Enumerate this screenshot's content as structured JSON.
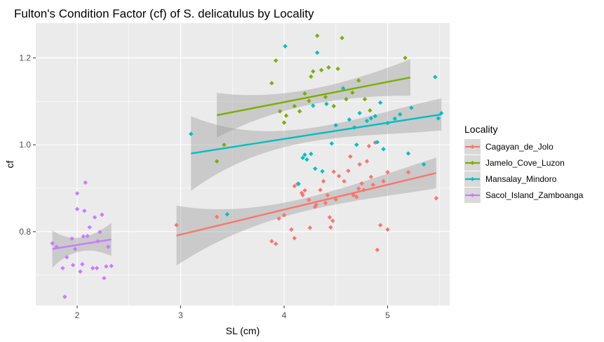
{
  "chart_data": {
    "type": "scatter",
    "title": "Fulton's Condition Factor (cf) of S. delicatulus by Locality",
    "xlabel": "SL (cm)",
    "ylabel": "cf",
    "xlim": [
      1.6,
      5.6
    ],
    "ylim": [
      0.63,
      1.28
    ],
    "x_ticks": [
      {
        "value": 2,
        "label": "2"
      },
      {
        "value": 3,
        "label": "3"
      },
      {
        "value": 4,
        "label": "4"
      },
      {
        "value": 5,
        "label": "5"
      }
    ],
    "y_ticks": [
      {
        "value": 0.8,
        "label": "0.8"
      },
      {
        "value": 1.0,
        "label": "1.0"
      },
      {
        "value": 1.2,
        "label": "1.2"
      }
    ],
    "grid": true,
    "legend": {
      "title": "Locality",
      "position": "right"
    },
    "series": [
      {
        "name": "Cagayan_de_Jolo",
        "color": "#F8766D",
        "points": [
          [
            2.96,
            0.815
          ],
          [
            3.35,
            0.834
          ],
          [
            3.88,
            0.778
          ],
          [
            3.92,
            0.772
          ],
          [
            3.95,
            0.83
          ],
          [
            4.0,
            0.838
          ],
          [
            4.07,
            0.805
          ],
          [
            4.1,
            0.785
          ],
          [
            4.1,
            0.905
          ],
          [
            4.13,
            0.91
          ],
          [
            4.17,
            0.889
          ],
          [
            4.18,
            0.884
          ],
          [
            4.2,
            0.895
          ],
          [
            4.24,
            0.873
          ],
          [
            4.25,
            0.809
          ],
          [
            4.3,
            0.857
          ],
          [
            4.31,
            0.862
          ],
          [
            4.35,
            0.896
          ],
          [
            4.38,
            0.916
          ],
          [
            4.4,
            0.866
          ],
          [
            4.42,
            0.884
          ],
          [
            4.44,
            0.833
          ],
          [
            4.45,
            0.81
          ],
          [
            4.47,
            0.825
          ],
          [
            4.48,
            0.938
          ],
          [
            4.5,
            0.874
          ],
          [
            4.53,
            0.928
          ],
          [
            4.58,
            0.916
          ],
          [
            4.62,
            0.94
          ],
          [
            4.64,
            0.973
          ],
          [
            4.67,
            0.884
          ],
          [
            4.7,
            0.88
          ],
          [
            4.72,
            0.899
          ],
          [
            4.73,
            0.955
          ],
          [
            4.75,
            0.911
          ],
          [
            4.77,
            0.896
          ],
          [
            4.8,
            0.962
          ],
          [
            4.82,
            0.997
          ],
          [
            4.84,
            0.926
          ],
          [
            4.86,
            0.908
          ],
          [
            4.88,
            1.005
          ],
          [
            4.9,
            0.758
          ],
          [
            4.93,
            0.815
          ],
          [
            4.96,
            0.916
          ],
          [
            5.0,
            0.805
          ],
          [
            5.0,
            0.937
          ],
          [
            5.2,
            0.937
          ],
          [
            5.47,
            0.877
          ]
        ],
        "fit": {
          "x": [
            2.96,
            5.47
          ],
          "y": [
            0.791,
            0.935
          ],
          "ci_low": [
            0.722,
            0.912
          ],
          "ci_high": [
            0.86,
            0.983
          ]
        }
      },
      {
        "name": "Jamelo_Cove_Luzon",
        "color": "#7CAE00",
        "points": [
          [
            3.35,
            0.962
          ],
          [
            3.42,
            1.0
          ],
          [
            3.88,
            1.142
          ],
          [
            3.92,
            1.194
          ],
          [
            3.96,
            1.077
          ],
          [
            4.0,
            1.051
          ],
          [
            4.02,
            1.067
          ],
          [
            4.1,
            1.089
          ],
          [
            4.15,
            1.077
          ],
          [
            4.2,
            1.118
          ],
          [
            4.24,
            1.101
          ],
          [
            4.26,
            1.157
          ],
          [
            4.28,
            1.169
          ],
          [
            4.32,
            1.251
          ],
          [
            4.36,
            1.172
          ],
          [
            4.4,
            1.11
          ],
          [
            4.43,
            1.178
          ],
          [
            4.48,
            1.089
          ],
          [
            4.52,
            1.175
          ],
          [
            4.56,
            1.246
          ],
          [
            4.6,
            1.105
          ],
          [
            4.66,
            1.12
          ],
          [
            4.72,
            1.148
          ],
          [
            4.78,
            1.105
          ],
          [
            4.83,
            1.079
          ],
          [
            5.17,
            1.2
          ]
        ],
        "fit": {
          "x": [
            3.35,
            5.22
          ],
          "y": [
            1.068,
            1.155
          ],
          "ci_low": [
            1.017,
            1.113
          ],
          "ci_high": [
            1.12,
            1.197
          ]
        }
      },
      {
        "name": "Mansalay_Mindoro",
        "color": "#00BFC4",
        "points": [
          [
            3.1,
            1.025
          ],
          [
            3.45,
            0.84
          ],
          [
            4.01,
            1.227
          ],
          [
            4.14,
            0.91
          ],
          [
            4.18,
            0.97
          ],
          [
            4.2,
            0.977
          ],
          [
            4.22,
            0.966
          ],
          [
            4.26,
            0.979
          ],
          [
            4.28,
            1.09
          ],
          [
            4.3,
            0.945
          ],
          [
            4.32,
            1.212
          ],
          [
            4.37,
            0.939
          ],
          [
            4.41,
            1.094
          ],
          [
            4.46,
            1.003
          ],
          [
            4.5,
            1.045
          ],
          [
            4.57,
            1.13
          ],
          [
            4.63,
            1.058
          ],
          [
            4.68,
            1.04
          ],
          [
            4.7,
            1.0
          ],
          [
            4.73,
            1.073
          ],
          [
            4.8,
            1.055
          ],
          [
            4.84,
            1.061
          ],
          [
            4.88,
            1.066
          ],
          [
            4.9,
            1.006
          ],
          [
            4.93,
            1.097
          ],
          [
            4.96,
            0.99
          ],
          [
            5.0,
            1.05
          ],
          [
            5.07,
            1.06
          ],
          [
            5.12,
            1.07
          ],
          [
            5.2,
            0.98
          ],
          [
            5.23,
            1.085
          ],
          [
            5.35,
            0.955
          ],
          [
            5.46,
            1.156
          ],
          [
            5.49,
            1.061
          ],
          [
            5.52,
            1.073
          ]
        ],
        "fit": {
          "x": [
            3.1,
            5.52
          ],
          "y": [
            0.98,
            1.07
          ],
          "ci_low": [
            0.894,
            1.033
          ],
          "ci_high": [
            1.066,
            1.107
          ]
        }
      },
      {
        "name": "Sacol_Island_Zamboanga",
        "color": "#C77CFF",
        "points": [
          [
            1.76,
            0.773
          ],
          [
            1.8,
            0.765
          ],
          [
            1.86,
            0.716
          ],
          [
            1.88,
            0.65
          ],
          [
            1.9,
            0.741
          ],
          [
            1.95,
            0.784
          ],
          [
            1.96,
            0.723
          ],
          [
            1.98,
            0.76
          ],
          [
            2.0,
            0.888
          ],
          [
            2.0,
            0.852
          ],
          [
            2.03,
            0.708
          ],
          [
            2.05,
            0.725
          ],
          [
            2.06,
            0.789
          ],
          [
            2.07,
            0.848
          ],
          [
            2.08,
            0.913
          ],
          [
            2.1,
            0.79
          ],
          [
            2.12,
            0.81
          ],
          [
            2.15,
            0.716
          ],
          [
            2.17,
            0.833
          ],
          [
            2.19,
            0.716
          ],
          [
            2.2,
            0.778
          ],
          [
            2.22,
            0.799
          ],
          [
            2.24,
            0.839
          ],
          [
            2.26,
            0.693
          ],
          [
            2.28,
            0.72
          ],
          [
            2.3,
            0.765
          ],
          [
            2.33,
            0.721
          ]
        ],
        "fit": {
          "x": [
            1.76,
            2.33
          ],
          "y": [
            0.76,
            0.782
          ],
          "ci_low": [
            0.717,
            0.745
          ],
          "ci_high": [
            0.803,
            0.821
          ]
        }
      }
    ]
  }
}
